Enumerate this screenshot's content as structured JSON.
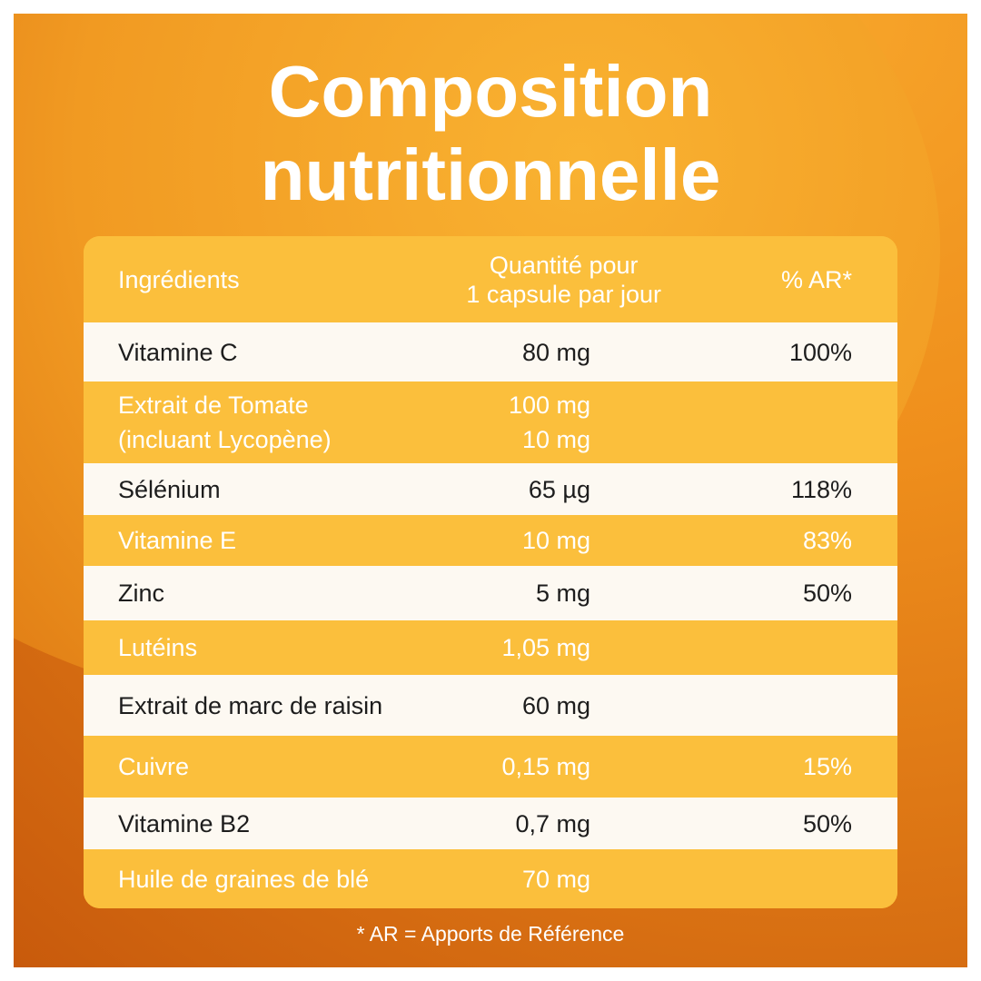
{
  "title": [
    "Composition",
    "nutritionnelle"
  ],
  "table": {
    "header": [
      "Ingrédients",
      "Quantité pour\n1 capsule par jour",
      "% AR*"
    ],
    "rows": [
      {
        "name": "Vitamine C",
        "quantity": "80 mg",
        "ar": "100%"
      },
      {
        "name": "Extrait de Tomate\n(incluant Lycopène)",
        "quantity": "100 mg\n10 mg"
      },
      {
        "name": "Sélénium",
        "quantity": "65 µg",
        "ar": "118%"
      },
      {
        "name": "Vitamine E",
        "quantity": "10 mg",
        "ar": "83%"
      },
      {
        "name": "Zinc",
        "quantity": "5 mg",
        "ar": "50%"
      },
      {
        "name": "Lutéins",
        "quantity": "1,05 mg"
      },
      {
        "name": "Extrait de marc de raisin",
        "quantity": "60 mg"
      },
      {
        "name": "Cuivre",
        "quantity": "0,15 mg",
        "ar": "15%"
      },
      {
        "name": "Vitamine B2",
        "quantity": "0,7 mg",
        "ar": "50%"
      },
      {
        "name": "Huile de graines de blé",
        "quantity": "70 mg"
      }
    ]
  },
  "footnote": "* AR = Apports de Référence"
}
